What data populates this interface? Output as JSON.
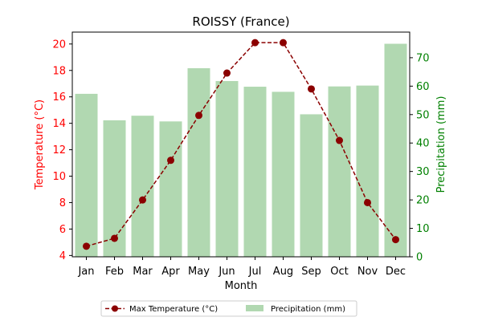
{
  "chart_data": {
    "type": "bar+line",
    "title": "ROISSY (France)",
    "xlabel": "Month",
    "categories": [
      "Jan",
      "Feb",
      "Mar",
      "Apr",
      "May",
      "Jun",
      "Jul",
      "Aug",
      "Sep",
      "Oct",
      "Nov",
      "Dec"
    ],
    "left_axis": {
      "label": "Temperature (°C)",
      "ylim": [
        3.9,
        20.9
      ],
      "ticks": [
        4,
        6,
        8,
        10,
        12,
        14,
        16,
        18,
        20
      ],
      "color": "#ff0000"
    },
    "right_axis": {
      "label": "Precipitation (mm)",
      "ylim": [
        0,
        79
      ],
      "ticks": [
        0,
        10,
        20,
        30,
        40,
        50,
        60,
        70
      ],
      "color": "#008000"
    },
    "series": [
      {
        "name": "Max Temperature (°C)",
        "kind": "line",
        "axis": "left",
        "color": "#8b0000",
        "line_style": "dashed",
        "marker": "circle",
        "values": [
          4.7,
          5.3,
          8.2,
          11.2,
          14.6,
          17.8,
          20.1,
          20.1,
          16.6,
          12.7,
          8.0,
          5.2
        ]
      },
      {
        "name": "Precipitation (mm)",
        "kind": "bar",
        "axis": "right",
        "color": "#b1d8b1",
        "values": [
          57.3,
          48.0,
          49.6,
          47.6,
          66.3,
          61.8,
          59.8,
          58.0,
          50.1,
          59.9,
          60.2,
          74.9
        ]
      }
    ],
    "legend": {
      "placement": "bottom-center",
      "columns": 2
    },
    "grid": false
  }
}
